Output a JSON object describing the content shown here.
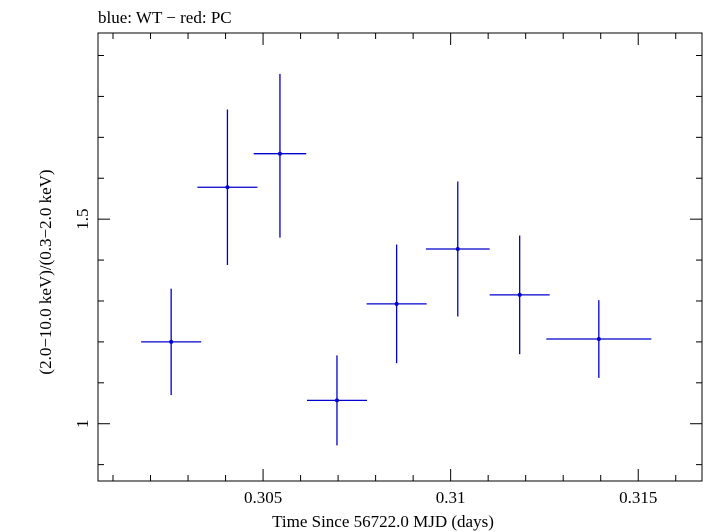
{
  "chart_data": {
    "type": "scatter",
    "title": "blue: WT − red: PC",
    "xlabel": "Time Since 56722.0 MJD (days)",
    "ylabel": "(2.0−10.0 keV)/(0.3−2.0 keV)",
    "xlim": [
      0.3006,
      0.3167
    ],
    "ylim": [
      0.86,
      1.955
    ],
    "x_ticks": [
      {
        "value": 0.305,
        "label": "0.305"
      },
      {
        "value": 0.31,
        "label": "0.31"
      },
      {
        "value": 0.315,
        "label": "0.315"
      }
    ],
    "y_ticks": [
      {
        "value": 1.0,
        "label": "1"
      },
      {
        "value": 1.5,
        "label": "1.5"
      }
    ],
    "x_minor_step": 0.001,
    "y_minor_step": 0.1,
    "series": [
      {
        "name": "WT",
        "color": "#0000cc",
        "points": [
          {
            "x": 0.30255,
            "xerr_lo": 0.0008,
            "xerr_hi": 0.0008,
            "y": 1.2,
            "yerr_lo": 0.13,
            "yerr_hi": 0.13
          },
          {
            "x": 0.30405,
            "xerr_lo": 0.0008,
            "xerr_hi": 0.0008,
            "y": 1.578,
            "yerr_lo": 0.19,
            "yerr_hi": 0.19
          },
          {
            "x": 0.30545,
            "xerr_lo": 0.0007,
            "xerr_hi": 0.0007,
            "y": 1.66,
            "yerr_lo": 0.205,
            "yerr_hi": 0.195
          },
          {
            "x": 0.30697,
            "xerr_lo": 0.0008,
            "xerr_hi": 0.0008,
            "y": 1.057,
            "yerr_lo": 0.11,
            "yerr_hi": 0.11
          },
          {
            "x": 0.30856,
            "xerr_lo": 0.0008,
            "xerr_hi": 0.0008,
            "y": 1.293,
            "yerr_lo": 0.145,
            "yerr_hi": 0.145
          },
          {
            "x": 0.31019,
            "xerr_lo": 0.00085,
            "xerr_hi": 0.00085,
            "y": 1.427,
            "yerr_lo": 0.165,
            "yerr_hi": 0.165
          },
          {
            "x": 0.31184,
            "xerr_lo": 0.0008,
            "xerr_hi": 0.0008,
            "y": 1.315,
            "yerr_lo": 0.145,
            "yerr_hi": 0.145
          },
          {
            "x": 0.31395,
            "xerr_lo": 0.0014,
            "xerr_hi": 0.0014,
            "y": 1.207,
            "yerr_lo": 0.095,
            "yerr_hi": 0.095
          }
        ]
      }
    ]
  }
}
